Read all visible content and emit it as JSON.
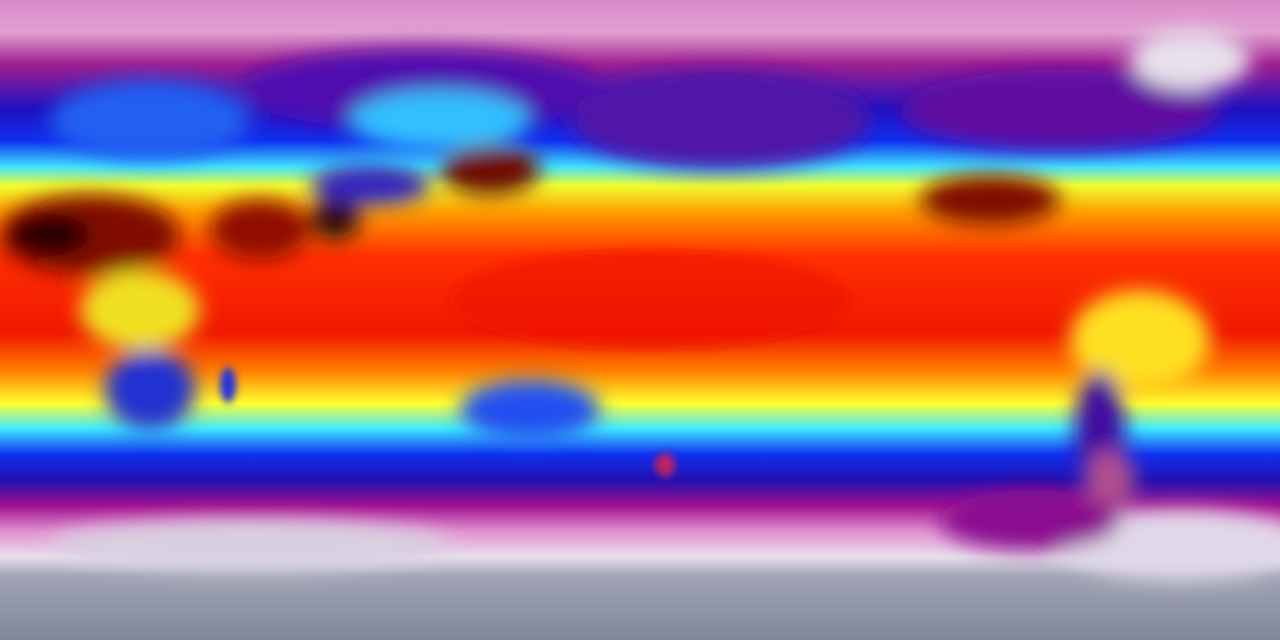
{
  "map": {
    "projection": "equirectangular",
    "color_scale": [
      "#e090c8",
      "#8a1090",
      "#1010e0",
      "#30e0ff",
      "#ffff20",
      "#ff9000",
      "#f01000",
      "#200000"
    ],
    "colors": {
      "polar_ice": "#8a90a0",
      "high_latitude": "#c070b8",
      "cold": "#1a10d8",
      "cool": "#40e8ff",
      "mild": "#ffff30",
      "warm": "#ff6a00",
      "hot": "#e81000",
      "very_hot": "#300808"
    }
  }
}
